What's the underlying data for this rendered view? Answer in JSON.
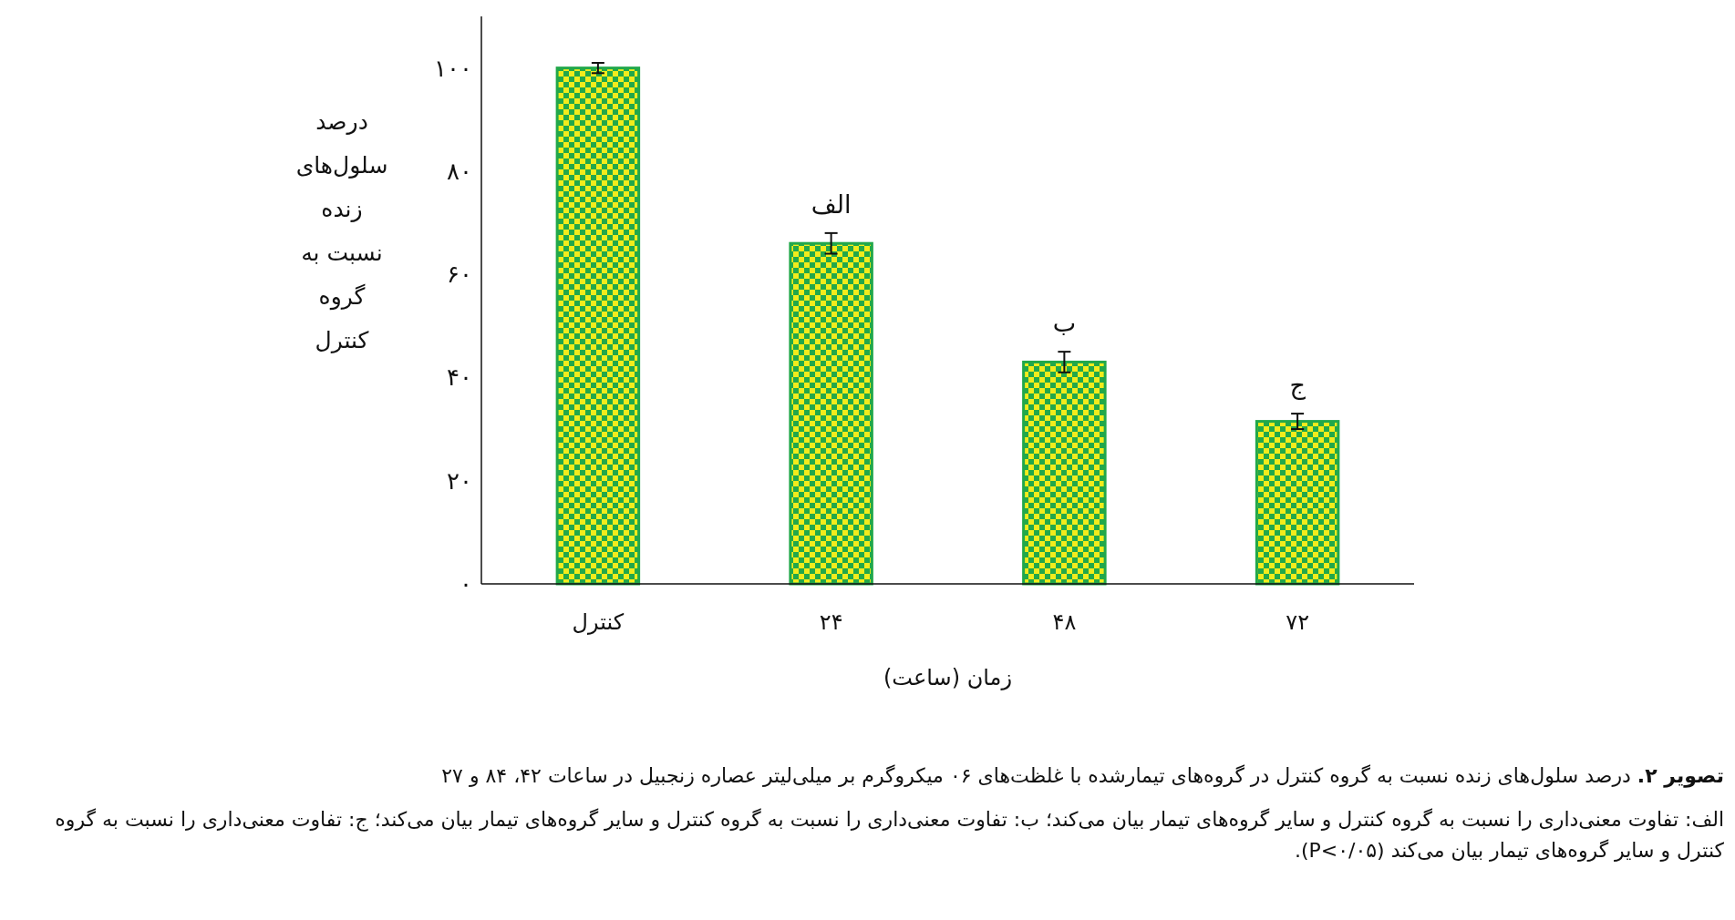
{
  "chart_data": {
    "type": "bar",
    "xlabel": "زمان (ساعت)",
    "ylabel": "درصد سلول‌های زنده نسبت به گروه کنترل",
    "categories": [
      "کنترل",
      "۲۴",
      "۴۸",
      "۷۲"
    ],
    "series": [
      {
        "color": "#22a84a",
        "values": [
          100,
          66,
          43,
          31.5
        ],
        "errors": [
          1,
          2,
          2,
          1.5
        ]
      }
    ],
    "ylim": [
      0,
      110
    ],
    "yticks": [
      {
        "value": 0,
        "label": "۰"
      },
      {
        "value": 20,
        "label": "۲۰"
      },
      {
        "value": 40,
        "label": "۴۰"
      },
      {
        "value": 60,
        "label": "۶۰"
      },
      {
        "value": 80,
        "label": "۸۰"
      },
      {
        "value": 100,
        "label": "۱۰۰"
      }
    ],
    "grid": false,
    "annotations": [
      {
        "text": "الف",
        "x": "۲۴",
        "y": 68
      },
      {
        "text": "ب",
        "x": "۴۸",
        "y": 45
      },
      {
        "text": "ج",
        "x": "۷۲",
        "y": 33
      },
      "تصویر ۲. درصد سلول‌های زنده نسبت به گروه کنترل در گروه‌های تیمارشده با غلظت‌های ۰۶ میکروگرم بر میلی‌لیتر عصاره زنجبیل در ساعات ۴۲، ۸۴ و ۲۷",
      "الف: تفاوت معنی‌داری را نسبت به گروه کنترل و سایر گروه‌های تیمار بیان می‌کند؛ ب: تفاوت معنی‌داری را نسبت به گروه کنترل و سایر گروه‌های تیمار بیان می‌کند؛ ج: تفاوت معنی‌داری را نسبت به گروه کنترل و سایر گروه‌های تیمار بیان می‌کند (P<۰/۰۵)."
    ]
  }
}
